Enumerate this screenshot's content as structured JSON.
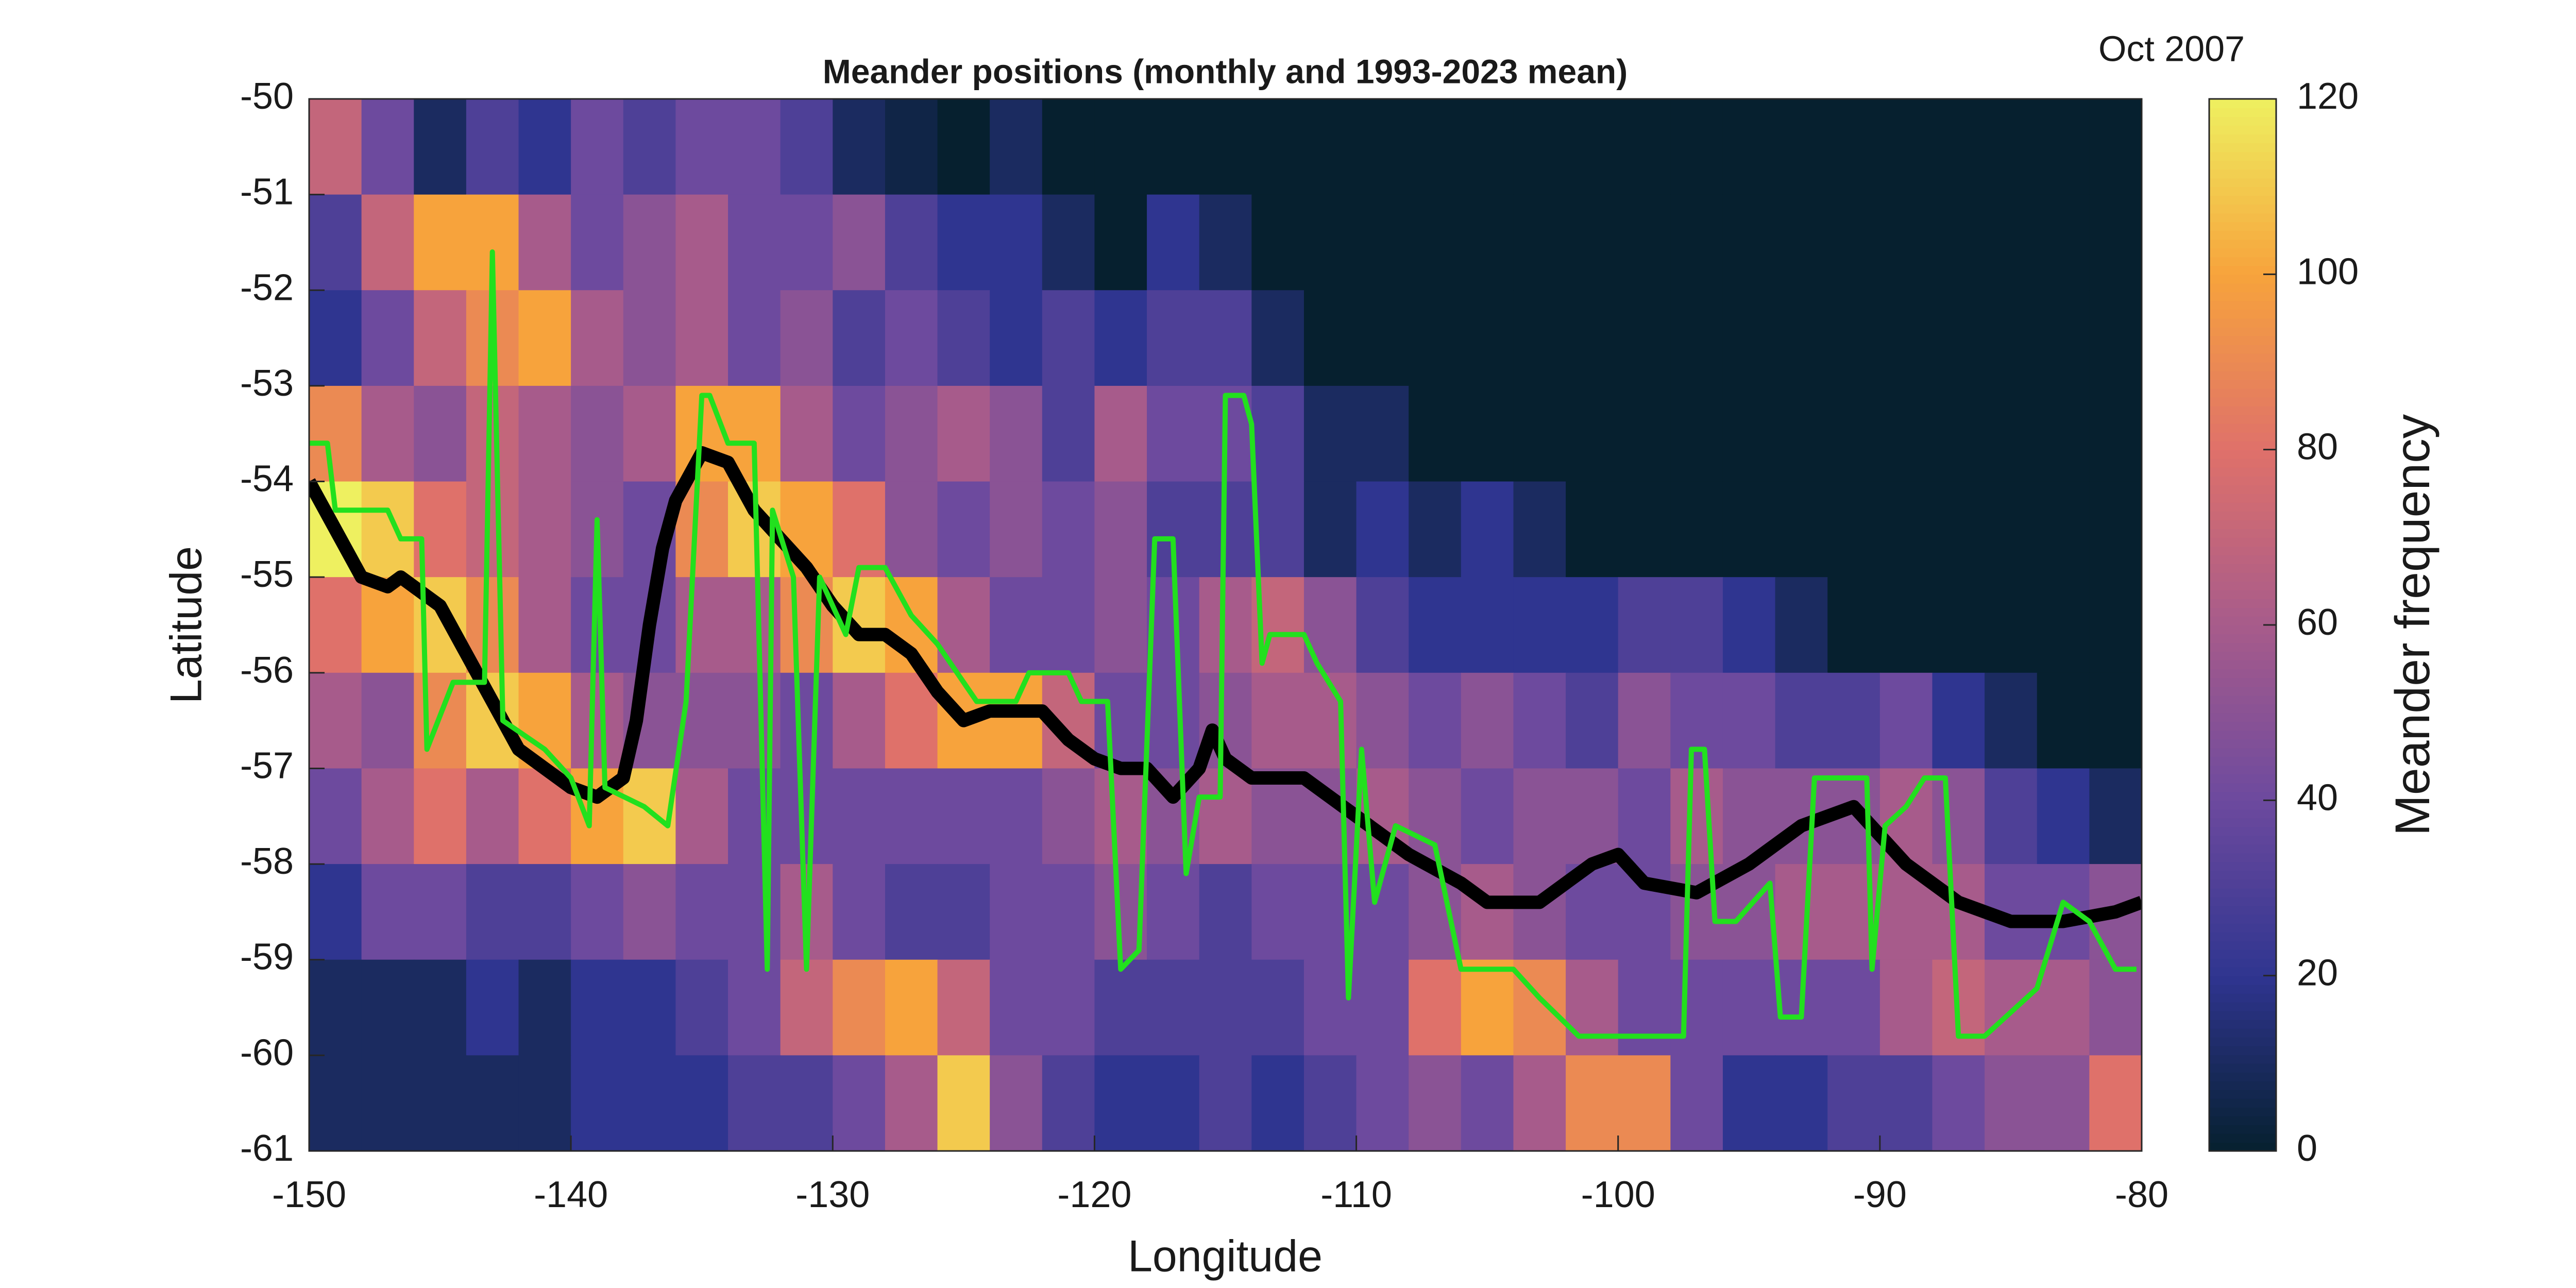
{
  "chart_data": {
    "type": "heatmap",
    "title": "Meander positions (monthly and 1993-2023 mean)",
    "annotation": "Oct 2007",
    "x_label": "Longitude",
    "y_label": "Latitude",
    "xlim": [
      -150,
      -80
    ],
    "ylim": [
      -61,
      -50
    ],
    "xticks": [
      -150,
      -140,
      -130,
      -120,
      -110,
      -100,
      -90,
      -80
    ],
    "yticks": [
      -50,
      -51,
      -52,
      -53,
      -54,
      -55,
      -56,
      -57,
      -58,
      -59,
      -60,
      -61
    ],
    "colorbar": {
      "label": "Meander frequency",
      "zlim": [
        0,
        120
      ],
      "ticks": [
        0,
        20,
        40,
        60,
        80,
        100,
        120
      ]
    },
    "colormap": [
      "#06202f",
      "#2f3590",
      "#6d4a9e",
      "#a75b8b",
      "#df716a",
      "#f7a33c",
      "#eef060"
    ],
    "x": [
      -149,
      -147,
      -145,
      -143,
      -141,
      -139,
      -137,
      -135,
      -133,
      -131,
      -129,
      -127,
      -125,
      -123,
      -121,
      -119,
      -117,
      -115,
      -113,
      -111,
      -109,
      -107,
      -105,
      -103,
      -101,
      -99,
      -97,
      -95,
      -93,
      -91,
      -89,
      -87,
      -85,
      -83,
      -81
    ],
    "y": [
      -50.5,
      -51.5,
      -52.5,
      -53.5,
      -54.5,
      -55.5,
      -56.5,
      -57.5,
      -58.5,
      -59.5,
      -60.5
    ],
    "z": [
      [
        70,
        40,
        10,
        30,
        20,
        40,
        30,
        40,
        40,
        30,
        10,
        5,
        0,
        10,
        0,
        0,
        0,
        0,
        0,
        0,
        0,
        0,
        0,
        0,
        0,
        0,
        0,
        0,
        0,
        0,
        0,
        0,
        0,
        0,
        0
      ],
      [
        30,
        70,
        100,
        100,
        60,
        40,
        50,
        60,
        40,
        40,
        50,
        30,
        20,
        20,
        10,
        0,
        20,
        10,
        0,
        0,
        0,
        0,
        0,
        0,
        0,
        0,
        0,
        0,
        0,
        0,
        0,
        0,
        0,
        0,
        0
      ],
      [
        20,
        40,
        70,
        90,
        100,
        60,
        50,
        60,
        40,
        50,
        30,
        40,
        30,
        20,
        30,
        20,
        30,
        30,
        10,
        0,
        0,
        0,
        0,
        0,
        0,
        0,
        0,
        0,
        0,
        0,
        0,
        0,
        0,
        0,
        0
      ],
      [
        90,
        60,
        50,
        70,
        60,
        50,
        60,
        100,
        100,
        60,
        40,
        50,
        60,
        50,
        30,
        60,
        40,
        40,
        30,
        10,
        10,
        0,
        0,
        0,
        0,
        0,
        0,
        0,
        0,
        0,
        0,
        0,
        0,
        0,
        0
      ],
      [
        120,
        110,
        80,
        70,
        60,
        50,
        40,
        90,
        110,
        100,
        80,
        50,
        40,
        50,
        40,
        50,
        30,
        30,
        30,
        10,
        20,
        10,
        20,
        10,
        0,
        0,
        0,
        0,
        0,
        0,
        0,
        0,
        0,
        0,
        0
      ],
      [
        80,
        100,
        110,
        90,
        60,
        40,
        40,
        60,
        60,
        90,
        110,
        100,
        60,
        40,
        40,
        50,
        40,
        60,
        70,
        50,
        30,
        20,
        20,
        20,
        20,
        30,
        30,
        20,
        10,
        0,
        0,
        0,
        0,
        0,
        0
      ],
      [
        60,
        50,
        90,
        110,
        100,
        60,
        50,
        50,
        50,
        40,
        60,
        80,
        100,
        100,
        70,
        40,
        40,
        50,
        60,
        60,
        50,
        40,
        50,
        40,
        30,
        50,
        40,
        40,
        30,
        30,
        40,
        20,
        10,
        0,
        0
      ],
      [
        40,
        60,
        80,
        60,
        80,
        100,
        110,
        60,
        40,
        40,
        40,
        40,
        40,
        40,
        50,
        60,
        50,
        60,
        50,
        50,
        60,
        50,
        40,
        50,
        50,
        40,
        60,
        50,
        50,
        50,
        60,
        50,
        30,
        20,
        10
      ],
      [
        20,
        40,
        40,
        30,
        30,
        40,
        50,
        40,
        40,
        60,
        40,
        30,
        30,
        40,
        40,
        50,
        40,
        30,
        40,
        40,
        40,
        50,
        60,
        50,
        40,
        40,
        50,
        50,
        60,
        60,
        60,
        60,
        40,
        40,
        50
      ],
      [
        10,
        10,
        10,
        20,
        10,
        20,
        20,
        30,
        40,
        70,
        90,
        100,
        70,
        40,
        40,
        30,
        30,
        30,
        30,
        40,
        40,
        80,
        100,
        90,
        60,
        40,
        40,
        40,
        40,
        40,
        60,
        70,
        60,
        60,
        50
      ],
      [
        10,
        10,
        10,
        10,
        10,
        20,
        20,
        20,
        30,
        30,
        40,
        60,
        110,
        50,
        30,
        20,
        20,
        30,
        20,
        30,
        40,
        50,
        40,
        60,
        90,
        90,
        40,
        20,
        20,
        30,
        30,
        40,
        50,
        50,
        80
      ]
    ],
    "series": [
      {
        "color": "#000000",
        "width": 26,
        "x": [
          -150,
          -149,
          -148,
          -147,
          -146.5,
          -145,
          -144,
          -143,
          -142,
          -141,
          -140,
          -139,
          -138,
          -137.5,
          -137,
          -136.5,
          -136,
          -135,
          -134,
          -133,
          -132,
          -131,
          -130,
          -129,
          -128,
          -127,
          -126,
          -125,
          -124,
          -122,
          -121,
          -120,
          -119,
          -118,
          -117,
          -116,
          -115.5,
          -115,
          -114,
          -112,
          -110,
          -108,
          -106,
          -105,
          -103,
          -101,
          -100,
          -99,
          -97,
          -95,
          -93,
          -91,
          -89,
          -87,
          -85,
          -83,
          -81,
          -80
        ],
        "values": [
          -54.0,
          -54.5,
          -55.0,
          -55.1,
          -55.0,
          -55.3,
          -55.8,
          -56.3,
          -56.8,
          -57.0,
          -57.2,
          -57.3,
          -57.1,
          -56.5,
          -55.5,
          -54.7,
          -54.2,
          -53.7,
          -53.8,
          -54.3,
          -54.6,
          -54.9,
          -55.3,
          -55.6,
          -55.6,
          -55.8,
          -56.2,
          -56.5,
          -56.4,
          -56.4,
          -56.7,
          -56.9,
          -57.0,
          -57.0,
          -57.3,
          -57.0,
          -56.6,
          -56.9,
          -57.1,
          -57.1,
          -57.5,
          -57.9,
          -58.2,
          -58.4,
          -58.4,
          -58.0,
          -57.9,
          -58.2,
          -58.3,
          -58.0,
          -57.6,
          -57.4,
          -58.0,
          -58.4,
          -58.6,
          -58.6,
          -58.5,
          -58.4
        ]
      },
      {
        "color": "#22e01e",
        "width": 10,
        "x": [
          -150,
          -149.3,
          -149,
          -147,
          -146.5,
          -145.7,
          -145.5,
          -144.5,
          -143.3,
          -143,
          -142.6,
          -141,
          -140,
          -139.3,
          -139,
          -138.7,
          -137.2,
          -136.3,
          -135.6,
          -135,
          -134.7,
          -134,
          -133,
          -132.5,
          -132.3,
          -131.5,
          -131,
          -130.5,
          -129.5,
          -129,
          -128,
          -127,
          -126,
          -124.5,
          -123,
          -122.5,
          -121,
          -120.5,
          -119.5,
          -119,
          -118.3,
          -117.7,
          -117,
          -116.5,
          -116,
          -115.2,
          -115,
          -114.3,
          -114,
          -113.6,
          -113.3,
          -112,
          -111.5,
          -110.6,
          -110.3,
          -109.8,
          -109.3,
          -108.5,
          -107,
          -106,
          -104,
          -103,
          -101.5,
          -97.5,
          -97.2,
          -96.7,
          -96.3,
          -95.5,
          -94.2,
          -93.8,
          -93,
          -92.5,
          -90.5,
          -90.3,
          -89.8,
          -89,
          -88.3,
          -87.5,
          -87,
          -86,
          -84,
          -83,
          -82,
          -81,
          -80.2
        ],
        "values": [
          -53.6,
          -53.6,
          -54.3,
          -54.3,
          -54.6,
          -54.6,
          -56.8,
          -56.1,
          -56.1,
          -51.6,
          -56.5,
          -56.8,
          -57.1,
          -57.6,
          -54.4,
          -57.2,
          -57.4,
          -57.6,
          -56.3,
          -53.1,
          -53.1,
          -53.6,
          -53.6,
          -59.1,
          -54.3,
          -55.0,
          -59.1,
          -55.0,
          -55.6,
          -54.9,
          -54.9,
          -55.4,
          -55.7,
          -56.3,
          -56.3,
          -56.0,
          -56.0,
          -56.3,
          -56.3,
          -59.1,
          -58.9,
          -54.6,
          -54.6,
          -58.1,
          -57.3,
          -57.3,
          -53.1,
          -53.1,
          -53.4,
          -55.9,
          -55.6,
          -55.6,
          -55.9,
          -56.3,
          -59.4,
          -56.8,
          -58.4,
          -57.6,
          -57.8,
          -59.1,
          -59.1,
          -59.4,
          -59.8,
          -59.8,
          -56.8,
          -56.8,
          -58.6,
          -58.6,
          -58.2,
          -59.6,
          -59.6,
          -57.1,
          -57.1,
          -59.1,
          -57.6,
          -57.4,
          -57.1,
          -57.1,
          -59.8,
          -59.8,
          -59.3,
          -58.4,
          -58.6,
          -59.1,
          -59.1
        ]
      }
    ]
  }
}
